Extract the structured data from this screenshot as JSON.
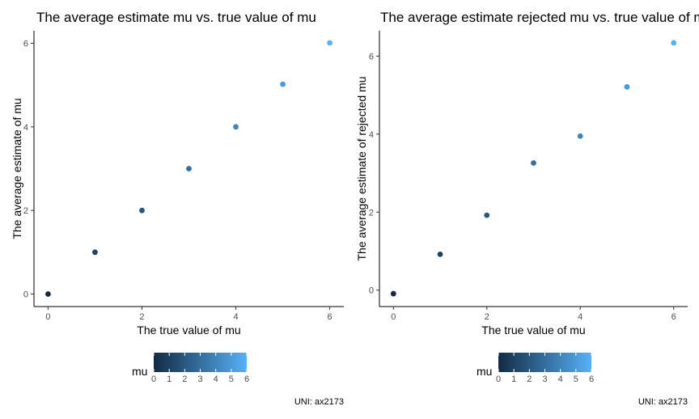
{
  "chart_data": [
    {
      "type": "scatter",
      "title": "The average estimate mu vs. true value of mu",
      "xlabel": "The true value of mu",
      "ylabel": "The average estimate of mu",
      "x": [
        0,
        1,
        2,
        3,
        4,
        5,
        6
      ],
      "y": [
        0.0,
        1.0,
        2.0,
        3.0,
        4.0,
        5.02,
        6.01
      ],
      "xticks": [
        "0",
        "2",
        "4",
        "6"
      ],
      "yticks": [
        "0",
        "2",
        "4",
        "6"
      ],
      "xlim": [
        -0.3,
        6.3
      ],
      "ylim": [
        -0.3,
        6.3
      ],
      "grid": false,
      "legend": {
        "title": "mu",
        "position": "bottom",
        "ticks": [
          "0",
          "1",
          "2",
          "3",
          "4",
          "5",
          "6"
        ],
        "low_color": "#132B43",
        "high_color": "#56B1F7"
      },
      "caption": "UNI: ax2173"
    },
    {
      "type": "scatter",
      "title": "The average estimate rejected mu vs. true value of mu",
      "xlabel": "The true value of mu",
      "ylabel": "The average estimate of rejected mu",
      "x": [
        0,
        1,
        2,
        3,
        4,
        5,
        6
      ],
      "y": [
        -0.09,
        0.92,
        1.92,
        3.26,
        3.95,
        5.21,
        6.34
      ],
      "xticks": [
        "0",
        "2",
        "4",
        "6"
      ],
      "yticks": [
        "0",
        "2",
        "4",
        "6"
      ],
      "xlim": [
        -0.3,
        6.3
      ],
      "ylim": [
        -0.42,
        6.65
      ],
      "grid": false,
      "legend": {
        "title": "mu",
        "position": "bottom",
        "ticks": [
          "0",
          "1",
          "2",
          "3",
          "4",
          "5",
          "6"
        ],
        "low_color": "#132B43",
        "high_color": "#56B1F7"
      },
      "caption": "UNI: ax2173"
    }
  ]
}
